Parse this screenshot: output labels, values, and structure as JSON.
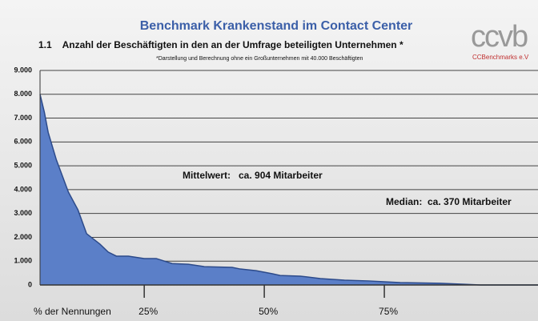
{
  "chart_data": {
    "type": "area",
    "title": "Benchmark Krankenstand im Contact Center",
    "subtitle": "1.1    Anzahl der Beschäftigten in den an der Umfrage beteiligten Unternehmen *",
    "note": "*Darstellung und Berechnung ohne ein Großunternehmen mit 40.000 Beschäftigten",
    "logo": "ccvb",
    "logo_caption": "CCBenchmarks e.V",
    "x_label": "% der Nennungen",
    "annotations": [
      "Mittelwert:   ca. 904 Mitarbeiter",
      "Median:  ca. 370 Mitarbeiter"
    ],
    "color": "#5b7fc8",
    "grid": true,
    "xlim": [
      3.3,
      107
    ],
    "xticks": [
      {
        "value": 25,
        "label": "25%"
      },
      {
        "value": 50,
        "label": "50%"
      },
      {
        "value": 75,
        "label": "75%"
      }
    ],
    "ylim": [
      0,
      9000
    ],
    "yticks": [
      0,
      {
        "value": 1000,
        "label": "1.000"
      },
      {
        "value": 2000,
        "label": "2.000"
      },
      {
        "value": 3000,
        "label": "3.000"
      },
      {
        "value": 4000,
        "label": "4.000"
      },
      {
        "value": 5000,
        "label": "5.000"
      },
      {
        "value": 6000,
        "label": "6.000"
      },
      {
        "value": 7000,
        "label": "7.000"
      },
      {
        "value": 8000,
        "label": "8.000"
      },
      {
        "value": 9000,
        "label": "9.000"
      }
    ],
    "x": [
      3.3,
      4.2,
      5,
      6.7,
      9.2,
      11.2,
      13,
      15.8,
      17.5,
      19.2,
      21.7,
      25,
      27.5,
      30.8,
      34.2,
      37.5,
      43.3,
      45,
      48.3,
      51.7,
      53.3,
      57.5,
      61.7,
      66.7,
      71.7,
      78.3,
      86.7,
      91.7,
      95,
      107
    ],
    "values": [
      8000,
      7250,
      6400,
      5250,
      3900,
      3150,
      2150,
      1710,
      1380,
      1210,
      1210,
      1110,
      1110,
      900,
      870,
      770,
      740,
      670,
      600,
      470,
      400,
      370,
      270,
      200,
      170,
      100,
      70,
      30,
      0,
      0
    ]
  }
}
